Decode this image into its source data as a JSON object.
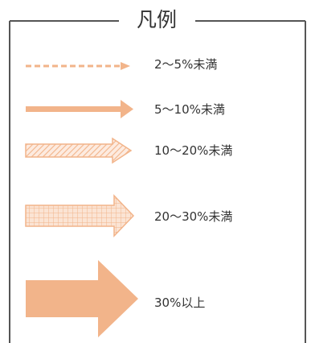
{
  "legend": {
    "title": "凡例",
    "accent_color": "#f2b48a",
    "items": [
      {
        "label": "2～5%未満",
        "style": "dashed-arrow"
      },
      {
        "label": "5～10%未満",
        "style": "solid-arrow"
      },
      {
        "label": "10～20%未満",
        "style": "hatched-arrow"
      },
      {
        "label": "20～30%未満",
        "style": "grid-arrow"
      },
      {
        "label": "30%以上",
        "style": "large-filled-arrow"
      }
    ]
  }
}
